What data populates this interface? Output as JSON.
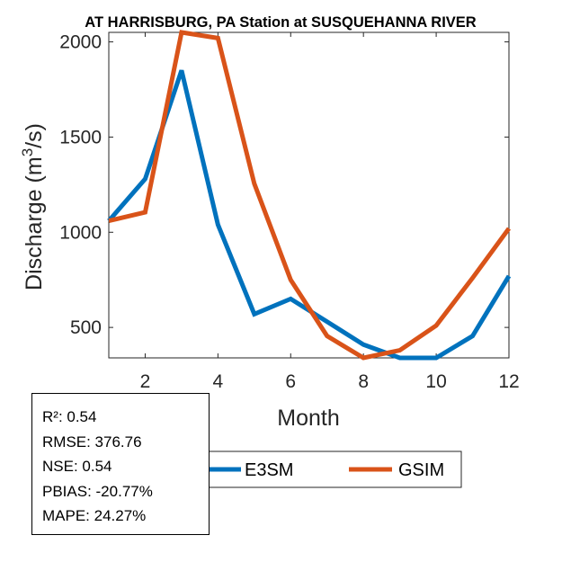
{
  "chart_data": {
    "type": "line",
    "title": "AT HARRISBURG, PA  Station at  SUSQUEHANNA RIVER",
    "xlabel": "Month",
    "ylabel": "Discharge (m",
    "ylabel_sup": "3",
    "ylabel_tail": "/s)",
    "xlim": [
      1,
      12
    ],
    "ylim": [
      340,
      2050
    ],
    "x": [
      1,
      2,
      3,
      4,
      5,
      6,
      7,
      8,
      9,
      10,
      11,
      12
    ],
    "xticks": [
      2,
      4,
      6,
      8,
      10,
      12
    ],
    "yticks": [
      500,
      1000,
      1500,
      2000
    ],
    "grid": false,
    "legend_position": "bottom",
    "series": [
      {
        "name": "E3SM",
        "color": "#0072BD",
        "values": [
          1060,
          1280,
          1850,
          1040,
          570,
          650,
          530,
          410,
          340,
          340,
          455,
          770
        ]
      },
      {
        "name": "GSIM",
        "color": "#D95319",
        "values": [
          1060,
          1105,
          2050,
          2020,
          1255,
          750,
          455,
          340,
          380,
          510,
          760,
          1020
        ]
      }
    ]
  },
  "stats": [
    "R²: 0.54",
    "RMSE: 376.76",
    "NSE: 0.54",
    "PBIAS: -20.77%",
    "MAPE: 24.27%"
  ]
}
